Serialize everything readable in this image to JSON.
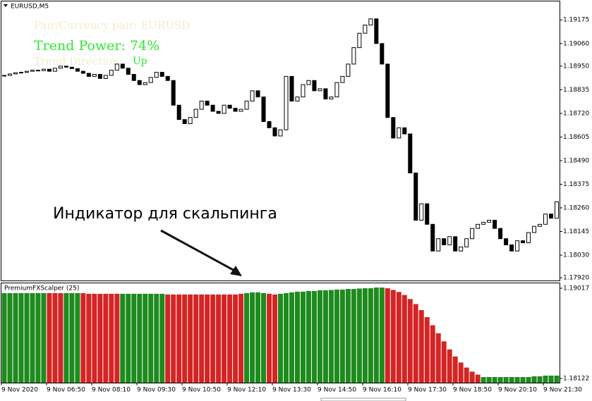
{
  "chart_data": [
    {
      "type": "candlestick",
      "title": "EURUSD,M5",
      "closes": [
        1.18905,
        1.18912,
        1.18918,
        1.1892,
        1.18925,
        1.1893,
        1.18928,
        1.18935,
        1.18925,
        1.1894,
        1.1895,
        1.18945,
        1.18938,
        1.18925,
        1.18915,
        1.189,
        1.1891,
        1.1889,
        1.18905,
        1.1893,
        1.1896,
        1.1894,
        1.1891,
        1.1888,
        1.1886,
        1.1887,
        1.18895,
        1.1892,
        1.189,
        1.1888,
        1.1876,
        1.1869,
        1.1867,
        1.187,
        1.1874,
        1.1878,
        1.1876,
        1.1873,
        1.1872,
        1.1876,
        1.18745,
        1.1873,
        1.1874,
        1.1878,
        1.1883,
        1.188,
        1.1868,
        1.1865,
        1.1861,
        1.1864,
        1.189,
        1.1878,
        1.188,
        1.1886,
        1.1888,
        1.1883,
        1.1884,
        1.1879,
        1.188,
        1.1887,
        1.189,
        1.1896,
        1.1904,
        1.1911,
        1.1915,
        1.1918,
        1.1906,
        1.1896,
        1.187,
        1.186,
        1.1865,
        1.1862,
        1.1843,
        1.182,
        1.1828,
        1.1818,
        1.1805,
        1.1811,
        1.1808,
        1.1812,
        1.1805,
        1.1807,
        1.1811,
        1.1816,
        1.1818,
        1.1819,
        1.182,
        1.1816,
        1.1811,
        1.1808,
        1.1805,
        1.181,
        1.1809,
        1.1814,
        1.1817,
        1.1818,
        1.1823,
        1.1821,
        1.1829
      ],
      "ylim": [
        1.1791,
        1.19265
      ],
      "yticks": [
        1.19175,
        {
          "value": 1.1906,
          "label": "1.19060"
        },
        {
          "value": 1.1895,
          "label": "1.18950"
        },
        1.18835,
        {
          "value": 1.1872,
          "label": "1.18720"
        },
        1.18605,
        {
          "value": 1.1849,
          "label": "1.18490"
        },
        1.18375,
        {
          "value": 1.1826,
          "label": "1.18260"
        },
        1.18145,
        {
          "value": 1.1803,
          "label": "1.18030"
        },
        {
          "value": 1.1792,
          "label": "1.17920"
        }
      ],
      "overlay": {
        "pair": "Pair/Currency pair: EURUSD",
        "trend_power": "Trend Power: 74%",
        "trend_direction": "Trend Direction:",
        "direction_value": "Up"
      },
      "annotation": "Индикатор для скальпинга"
    },
    {
      "type": "bar",
      "title": "PremiumFXScalper (25)",
      "values": [
        1.18969,
        1.18969,
        1.18969,
        1.18969,
        1.18969,
        1.18969,
        1.18969,
        1.18969,
        1.18969,
        1.18969,
        1.18969,
        1.18969,
        1.18969,
        1.18969,
        1.18969,
        1.18962,
        1.18962,
        1.18962,
        1.18962,
        1.18962,
        1.18962,
        1.18962,
        1.18962,
        1.18962,
        1.18962,
        1.18962,
        1.18962,
        1.18962,
        1.18962,
        1.18955,
        1.18955,
        1.18955,
        1.18955,
        1.18955,
        1.18955,
        1.18955,
        1.18955,
        1.18955,
        1.18955,
        1.18955,
        1.18955,
        1.18955,
        1.18962,
        1.18969,
        1.18976,
        1.18976,
        1.18969,
        1.18962,
        1.18955,
        1.18962,
        1.18969,
        1.18976,
        1.18983,
        1.18983,
        1.1899,
        1.1899,
        1.18997,
        1.18997,
        1.19,
        1.19004,
        1.19004,
        1.1901,
        1.1901,
        1.19014,
        1.19017,
        1.19017,
        1.19024,
        1.19024,
        1.19017,
        1.19,
        1.1898,
        1.1895,
        1.1891,
        1.1886,
        1.188,
        1.1873,
        1.1865,
        1.1857,
        1.1849,
        1.1841,
        1.1834,
        1.1828,
        1.1823,
        1.1819,
        1.1816,
        1.18136,
        1.18136,
        1.18136,
        1.18136,
        1.18136,
        1.18136,
        1.18136,
        1.18136,
        1.18136,
        1.18143,
        1.18143,
        1.1815,
        1.1815,
        1.1815
      ],
      "colors": [
        "#1d8b1d",
        "#1d8b1d",
        "#1d8b1d",
        "#1d8b1d",
        "#1d8b1d",
        "#1d8b1d",
        "#1d8b1d",
        "#1d8b1d",
        "#d42424",
        "#d42424",
        "#d42424",
        "#1d8b1d",
        "#1d8b1d",
        "#1d8b1d",
        "#d42424",
        "#d42424",
        "#d42424",
        "#d42424",
        "#d42424",
        "#d42424",
        "#d42424",
        "#1d8b1d",
        "#1d8b1d",
        "#1d8b1d",
        "#1d8b1d",
        "#1d8b1d",
        "#1d8b1d",
        "#1d8b1d",
        "#1d8b1d",
        "#d42424",
        "#d42424",
        "#d42424",
        "#d42424",
        "#d42424",
        "#d42424",
        "#d42424",
        "#d42424",
        "#d42424",
        "#d42424",
        "#d42424",
        "#d42424",
        "#d42424",
        "#d42424",
        "#1d8b1d",
        "#1d8b1d",
        "#1d8b1d",
        "#1d8b1d",
        "#d42424",
        "#d42424",
        "#1d8b1d",
        "#1d8b1d",
        "#1d8b1d",
        "#1d8b1d",
        "#1d8b1d",
        "#1d8b1d",
        "#1d8b1d",
        "#1d8b1d",
        "#1d8b1d",
        "#1d8b1d",
        "#1d8b1d",
        "#1d8b1d",
        "#1d8b1d",
        "#1d8b1d",
        "#1d8b1d",
        "#1d8b1d",
        "#1d8b1d",
        "#1d8b1d",
        "#1d8b1d",
        "#d42424",
        "#d42424",
        "#d42424",
        "#d42424",
        "#d42424",
        "#d42424",
        "#d42424",
        "#d42424",
        "#d42424",
        "#d42424",
        "#d42424",
        "#d42424",
        "#d42424",
        "#d42424",
        "#d42424",
        "#d42424",
        "#d42424",
        "#1d8b1d",
        "#1d8b1d",
        "#1d8b1d",
        "#1d8b1d",
        "#1d8b1d",
        "#1d8b1d",
        "#1d8b1d",
        "#1d8b1d",
        "#1d8b1d",
        "#1d8b1d",
        "#1d8b1d",
        "#1d8b1d",
        "#1d8b1d",
        "#1d8b1d"
      ],
      "ylim": [
        1.1808,
        1.19066
      ],
      "yticks": [
        1.19017,
        1.18122
      ],
      "time_labels": [
        "9 Nov 2020",
        "9 Nov 06:50",
        "9 Nov 08:10",
        "9 Nov 09:30",
        "9 Nov 10:50",
        "9 Nov 12:10",
        "9 Nov 13:30",
        "9 Nov 14:50",
        "9 Nov 16:10",
        "9 Nov 17:30",
        "9 Nov 18:50",
        "9 Nov 20:10",
        "9 Nov 21:30"
      ]
    }
  ]
}
